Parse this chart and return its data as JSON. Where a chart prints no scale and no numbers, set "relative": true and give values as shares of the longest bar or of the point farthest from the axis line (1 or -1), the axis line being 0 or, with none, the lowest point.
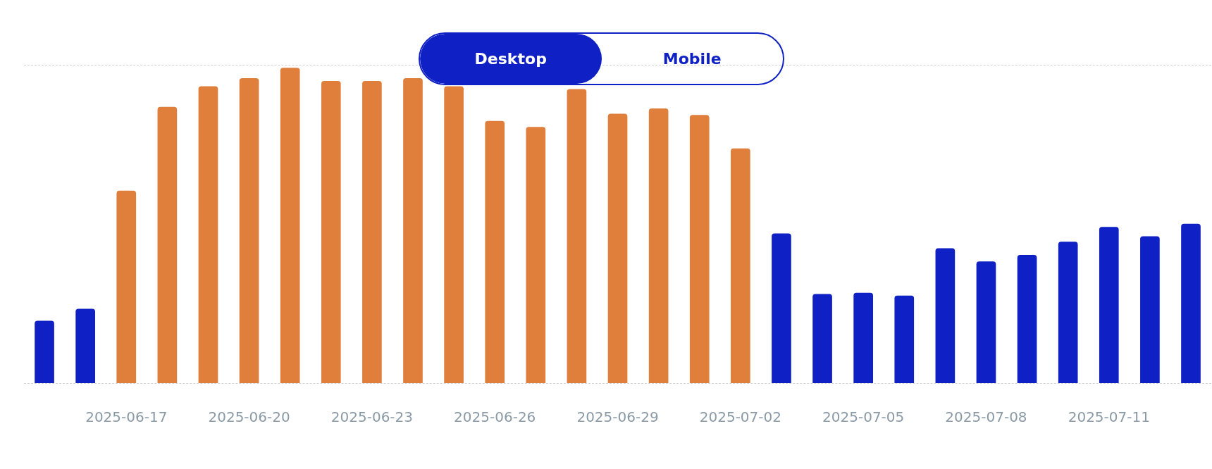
{
  "chart_data": {
    "type": "bar",
    "relative": true,
    "legend": false,
    "categories": [
      null,
      null,
      "2025-06-17",
      null,
      null,
      "2025-06-20",
      null,
      null,
      "2025-06-23",
      null,
      null,
      "2025-06-26",
      null,
      null,
      "2025-06-29",
      null,
      null,
      "2025-07-02",
      null,
      null,
      "2025-07-05",
      null,
      null,
      "2025-07-08",
      null,
      null,
      "2025-07-11",
      null,
      null
    ],
    "values": [
      0.197,
      0.235,
      0.61,
      0.876,
      0.941,
      0.967,
      1,
      0.958,
      0.958,
      0.967,
      0.941,
      0.831,
      0.812,
      0.932,
      0.854,
      0.871,
      0.85,
      0.744,
      0.474,
      0.282,
      0.286,
      0.277,
      0.427,
      0.385,
      0.406,
      0.448,
      0.495,
      0.465,
      0.505
    ],
    "colors": [
      "#0f20c4",
      "#0f20c4",
      "#e07f3c",
      "#e07f3c",
      "#e07f3c",
      "#e07f3c",
      "#e07f3c",
      "#e07f3c",
      "#e07f3c",
      "#e07f3c",
      "#e07f3c",
      "#e07f3c",
      "#e07f3c",
      "#e07f3c",
      "#e07f3c",
      "#e07f3c",
      "#e07f3c",
      "#e07f3c",
      "#0f20c4",
      "#0f20c4",
      "#0f20c4",
      "#0f20c4",
      "#0f20c4",
      "#0f20c4",
      "#0f20c4",
      "#0f20c4",
      "#0f20c4",
      "#0f20c4",
      "#0f20c4"
    ],
    "annotations": [
      "Desktop",
      "Mobile"
    ]
  }
}
